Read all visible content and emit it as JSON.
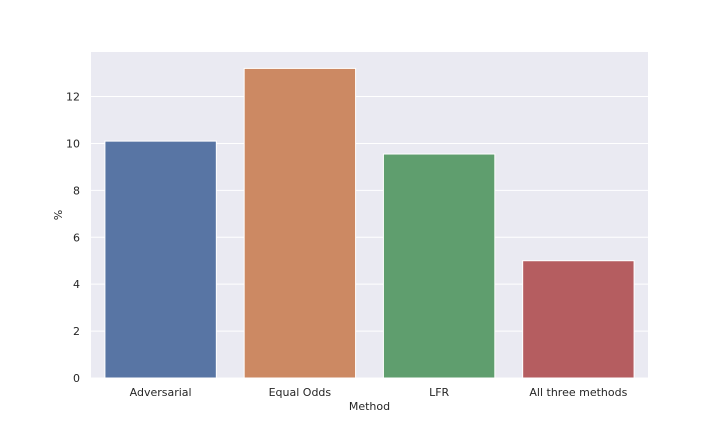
{
  "chart_data": {
    "type": "bar",
    "categories": [
      "Adversarial",
      "Equal Odds",
      "LFR",
      "All three methods"
    ],
    "values": [
      10.1,
      13.2,
      9.55,
      5.0
    ],
    "colors": [
      "#5875a4",
      "#cc8963",
      "#5f9e6e",
      "#b55d60"
    ],
    "title": "",
    "xlabel": "Method",
    "ylabel": "%",
    "ylim": [
      0,
      13.9
    ],
    "yticks": [
      0,
      2,
      4,
      6,
      8,
      10,
      12
    ],
    "grid": true,
    "legend": "none",
    "background": "#eaeaf2"
  }
}
